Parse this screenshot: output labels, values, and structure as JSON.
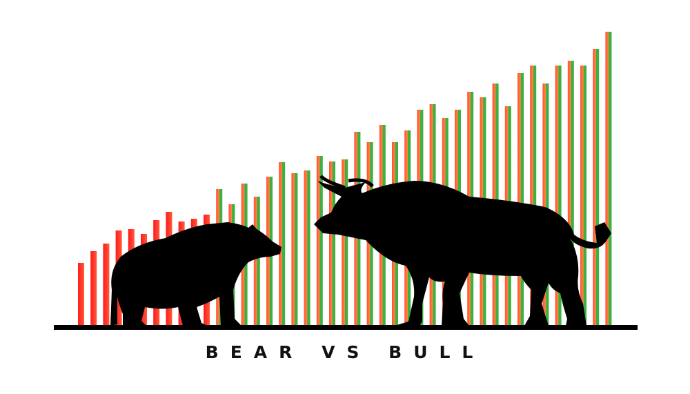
{
  "caption": "BEAR VS BULL",
  "colors": {
    "bear_bar": "#ff1a1a",
    "bear_bar_light": "#ff5a3c",
    "bull_green": "#3cb043",
    "bull_red": "#ff4d3a",
    "silhouette": "#000000",
    "ground": "#000000"
  },
  "icons": [
    "bear-silhouette-icon",
    "bull-silhouette-icon"
  ],
  "chart_data": {
    "type": "bar",
    "bars_bear": [
      90,
      107,
      118,
      137,
      139,
      132,
      152,
      164,
      150,
      154,
      160
    ],
    "bars_bull": [
      197,
      175,
      205,
      186,
      215,
      236,
      220,
      224,
      245,
      237,
      240,
      280,
      265,
      290,
      265,
      282,
      312,
      320,
      300,
      312,
      338,
      330,
      350,
      317,
      365,
      376,
      350,
      376,
      383,
      376,
      400,
      425
    ]
  }
}
